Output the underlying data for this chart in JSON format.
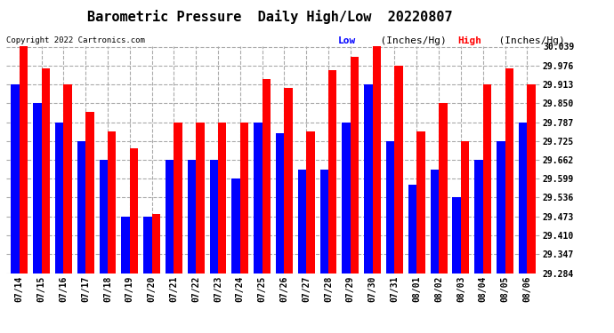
{
  "title": "Barometric Pressure  Daily High/Low  20220807",
  "copyright_text": "Copyright 2022 Cartronics.com",
  "legend_low_label": "Low",
  "legend_low_units": "  (Inches/Hg)",
  "legend_high_label": "High",
  "legend_high_units": "  (Inches/Hg)",
  "background_color": "#ffffff",
  "plot_background_color": "#ffffff",
  "dates": [
    "07/14",
    "07/15",
    "07/16",
    "07/17",
    "07/18",
    "07/19",
    "07/20",
    "07/21",
    "07/22",
    "07/23",
    "07/24",
    "07/25",
    "07/26",
    "07/27",
    "07/28",
    "07/29",
    "07/30",
    "07/31",
    "08/01",
    "08/02",
    "08/03",
    "08/04",
    "08/05",
    "08/06"
  ],
  "high_values": [
    30.039,
    29.965,
    29.913,
    29.82,
    29.756,
    29.7,
    29.48,
    29.787,
    29.787,
    29.787,
    29.787,
    29.93,
    29.9,
    29.756,
    29.96,
    30.005,
    30.039,
    29.976,
    29.756,
    29.85,
    29.725,
    29.913,
    29.965,
    29.913
  ],
  "low_values": [
    29.913,
    29.85,
    29.787,
    29.725,
    29.662,
    29.473,
    29.473,
    29.662,
    29.662,
    29.662,
    29.599,
    29.787,
    29.75,
    29.63,
    29.63,
    29.787,
    29.913,
    29.725,
    29.58,
    29.63,
    29.536,
    29.662,
    29.725,
    29.787
  ],
  "y_min": 29.284,
  "y_max": 30.039,
  "y_ticks": [
    29.284,
    29.347,
    29.41,
    29.473,
    29.536,
    29.599,
    29.662,
    29.725,
    29.787,
    29.85,
    29.913,
    29.976,
    30.039
  ],
  "bar_color_low": "#0000ff",
  "bar_color_high": "#ff0000",
  "grid_color": "#aaaaaa",
  "title_fontsize": 11,
  "tick_fontsize": 7,
  "legend_fontsize": 8
}
